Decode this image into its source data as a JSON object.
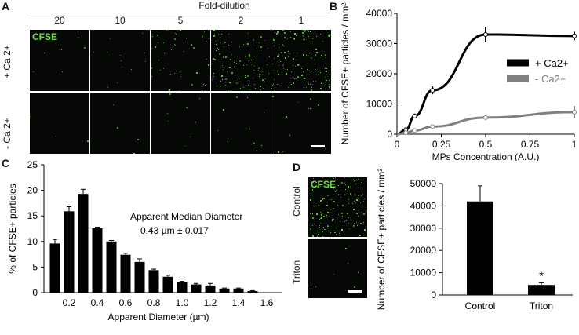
{
  "panels": {
    "a": "A",
    "b": "B",
    "c": "C",
    "d": "D"
  },
  "panel_a": {
    "header": "Fold-dilution",
    "dilutions": [
      "20",
      "10",
      "5",
      "2",
      "1"
    ],
    "stain_label": "CFSE",
    "row_labels": [
      "+ Ca 2+",
      "- Ca 2+"
    ],
    "stain_color": "#6ddc3c"
  },
  "panel_d": {
    "stain_label": "CFSE",
    "row_labels": [
      "Control",
      "Triton"
    ]
  },
  "chart_data": [
    {
      "panel": "B",
      "type": "line",
      "xlabel": "MPs Concentration (A.U.)",
      "ylabel": "Number of CFSE+ particles / mm²",
      "x_ticks": [
        "0",
        "0.25",
        "0.5",
        "0.75",
        "1"
      ],
      "y_ticks": [
        "0",
        "10000",
        "20000",
        "30000",
        "40000"
      ],
      "xlim": [
        0,
        1
      ],
      "ylim": [
        0,
        40000
      ],
      "legend_position": "right",
      "series": [
        {
          "name": "+ Ca2+",
          "color": "#000000",
          "x": [
            0.05,
            0.1,
            0.2,
            0.5,
            1
          ],
          "y": [
            1500,
            6000,
            14500,
            33000,
            32500
          ],
          "err": [
            400,
            800,
            1300,
            2600,
            1400
          ]
        },
        {
          "name": "- Ca2+",
          "color": "#808080",
          "x": [
            0.05,
            0.1,
            0.2,
            0.5,
            1
          ],
          "y": [
            500,
            1200,
            2500,
            5500,
            7300
          ],
          "err": [
            200,
            200,
            300,
            300,
            2000
          ]
        }
      ]
    },
    {
      "panel": "C",
      "type": "bar",
      "xlabel": "Apparent Diameter (µm)",
      "ylabel": "% of CFSE+ particles",
      "x_ticks": [
        "0.2",
        "0.4",
        "0.6",
        "0.8",
        "1.0",
        "1.2",
        "1.4",
        "1.6"
      ],
      "y_ticks": [
        "0",
        "5",
        "10",
        "15",
        "20",
        "25"
      ],
      "ylim": [
        0,
        25
      ],
      "categories": [
        0.1,
        0.2,
        0.3,
        0.4,
        0.5,
        0.6,
        0.7,
        0.8,
        0.9,
        1.0,
        1.1,
        1.2,
        1.3,
        1.4,
        1.5
      ],
      "values": [
        9.6,
        15.9,
        19.3,
        12.6,
        10.0,
        7.4,
        6.0,
        4.4,
        3.1,
        2.0,
        1.6,
        1.4,
        0.8,
        0.8,
        0.3
      ],
      "errors": [
        0.8,
        0.9,
        0.9,
        0.2,
        0.2,
        0.3,
        0.6,
        0.2,
        0.3,
        0.2,
        0.2,
        0.4,
        0.1,
        0.1,
        0.1
      ],
      "annotation": [
        "Apparent Median Diameter",
        "0.43 µm ± 0.017"
      ]
    },
    {
      "panel": "D",
      "type": "bar",
      "xlabel": "",
      "ylabel": "Number of CFSE+ particles / mm²",
      "categories": [
        "Control",
        "Triton"
      ],
      "values": [
        42000,
        4500
      ],
      "errors": [
        7000,
        1000
      ],
      "y_ticks": [
        "0",
        "10000",
        "20000",
        "30000",
        "40000",
        "50000"
      ],
      "ylim": [
        0,
        50000
      ],
      "annotation": "*"
    }
  ]
}
